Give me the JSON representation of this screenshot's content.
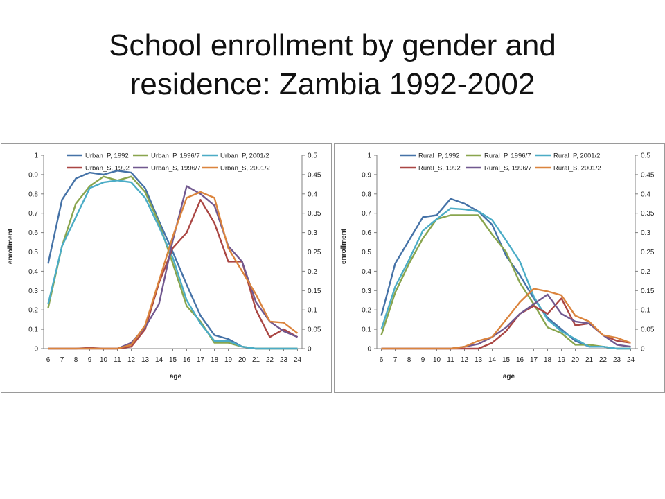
{
  "slide": {
    "title_line1": "School enrollment by gender and",
    "title_line2": "residence: Zambia 1992-2002"
  },
  "colors": {
    "1992_P": "#4572a7",
    "1996_P": "#89a54e",
    "2001_P": "#4bacc6",
    "1992_S": "#aa4643",
    "1996_S": "#71588f",
    "2001_S": "#db843d"
  },
  "chart_data": [
    {
      "type": "line",
      "xlabel": "age",
      "ylabel": "enrollment",
      "x": [
        6,
        7,
        8,
        9,
        10,
        11,
        12,
        13,
        14,
        15,
        16,
        17,
        18,
        19,
        20,
        21,
        22,
        23,
        24
      ],
      "ylim": [
        0,
        1
      ],
      "y2lim": [
        0,
        0.5
      ],
      "yticks": [
        "0",
        "0.1",
        "0.2",
        "0.3",
        "0.4",
        "0.5",
        "0.6",
        "0.7",
        "0.8",
        "0.9",
        "1"
      ],
      "y2ticks": [
        "0",
        "0.05",
        "0.1",
        "0.15",
        "0.2",
        "0.25",
        "0.3",
        "0.35",
        "0.4",
        "0.45",
        "0.5"
      ],
      "legend_position": "top",
      "series": [
        {
          "name": "Urban_P, 1992",
          "axis": "left",
          "color": "#4572a7",
          "values": [
            0.44,
            0.77,
            0.88,
            0.91,
            0.9,
            0.92,
            0.91,
            0.83,
            0.66,
            0.5,
            0.33,
            0.17,
            0.07,
            0.05,
            0.01,
            0.0,
            0.0,
            0.0,
            0.0
          ]
        },
        {
          "name": "Urban_P, 1996/7",
          "axis": "left",
          "color": "#89a54e",
          "values": [
            0.21,
            0.53,
            0.75,
            0.84,
            0.89,
            0.87,
            0.89,
            0.81,
            0.65,
            0.44,
            0.22,
            0.14,
            0.03,
            0.03,
            0.01,
            0.0,
            0.0,
            0.0,
            0.0
          ]
        },
        {
          "name": "Urban_P, 2001/2",
          "axis": "left",
          "color": "#4bacc6",
          "values": [
            0.23,
            0.53,
            0.68,
            0.83,
            0.86,
            0.87,
            0.86,
            0.78,
            0.63,
            0.47,
            0.25,
            0.13,
            0.04,
            0.04,
            0.01,
            0.0,
            0.0,
            0.0,
            0.0
          ]
        },
        {
          "name": "Urban_S, 1992",
          "axis": "right",
          "color": "#aa4643",
          "values": [
            0.0,
            0.0,
            0.0,
            0.002,
            0.0,
            0.0,
            0.005,
            0.05,
            0.17,
            0.26,
            0.3,
            0.385,
            0.325,
            0.225,
            0.225,
            0.1,
            0.03,
            0.05,
            0.03
          ]
        },
        {
          "name": "Urban_S, 1996/7",
          "axis": "right",
          "color": "#71588f",
          "values": [
            0.0,
            0.0,
            0.0,
            0.0,
            0.0,
            0.0,
            0.015,
            0.055,
            0.115,
            0.28,
            0.42,
            0.4,
            0.37,
            0.265,
            0.225,
            0.12,
            0.07,
            0.045,
            0.03
          ]
        },
        {
          "name": "Urban_S, 2001/2",
          "axis": "right",
          "color": "#db843d",
          "values": [
            0.0,
            0.0,
            0.0,
            0.0,
            0.0,
            0.0,
            0.01,
            0.06,
            0.175,
            0.29,
            0.39,
            0.405,
            0.39,
            0.26,
            0.2,
            0.14,
            0.07,
            0.067,
            0.04
          ]
        }
      ]
    },
    {
      "type": "line",
      "xlabel": "age",
      "ylabel": "enrollment",
      "x": [
        6,
        7,
        8,
        9,
        10,
        11,
        12,
        13,
        14,
        15,
        16,
        17,
        18,
        19,
        20,
        21,
        22,
        23,
        24
      ],
      "ylim": [
        0,
        1
      ],
      "y2lim": [
        0,
        0.5
      ],
      "yticks": [
        "0",
        "0.1",
        "0.2",
        "0.3",
        "0.4",
        "0.5",
        "0.6",
        "0.7",
        "0.8",
        "0.9",
        "1"
      ],
      "y2ticks": [
        "0",
        "0.05",
        "0.1",
        "0.15",
        "0.2",
        "0.25",
        "0.3",
        "0.35",
        "0.4",
        "0.45",
        "0.5"
      ],
      "legend_position": "top",
      "series": [
        {
          "name": "Rural_P, 1992",
          "axis": "left",
          "color": "#4572a7",
          "values": [
            0.17,
            0.44,
            0.56,
            0.68,
            0.69,
            0.775,
            0.75,
            0.71,
            0.64,
            0.48,
            0.38,
            0.26,
            0.16,
            0.1,
            0.04,
            0.01,
            0.01,
            0.0,
            0.0
          ]
        },
        {
          "name": "Rural_P, 1996/7",
          "axis": "left",
          "color": "#89a54e",
          "values": [
            0.07,
            0.29,
            0.44,
            0.57,
            0.67,
            0.69,
            0.69,
            0.69,
            0.59,
            0.5,
            0.34,
            0.23,
            0.11,
            0.08,
            0.02,
            0.02,
            0.01,
            0.0,
            0.0
          ]
        },
        {
          "name": "Rural_P, 2001/2",
          "axis": "left",
          "color": "#4bacc6",
          "values": [
            0.1,
            0.32,
            0.46,
            0.61,
            0.67,
            0.725,
            0.72,
            0.71,
            0.665,
            0.56,
            0.45,
            0.27,
            0.15,
            0.09,
            0.05,
            0.01,
            0.01,
            0.0,
            0.0
          ]
        },
        {
          "name": "Rural_S, 1992",
          "axis": "right",
          "color": "#aa4643",
          "values": [
            0.0,
            0.0,
            0.0,
            0.0,
            0.0,
            0.0,
            0.0,
            0.0,
            0.015,
            0.045,
            0.09,
            0.11,
            0.09,
            0.13,
            0.06,
            0.065,
            0.035,
            0.02,
            0.015
          ]
        },
        {
          "name": "Rural_S, 1996/7",
          "axis": "right",
          "color": "#71588f",
          "values": [
            0.0,
            0.0,
            0.0,
            0.0,
            0.0,
            0.0,
            0.005,
            0.012,
            0.03,
            0.055,
            0.09,
            0.115,
            0.14,
            0.09,
            0.07,
            0.065,
            0.035,
            0.01,
            0.005
          ]
        },
        {
          "name": "Rural_S, 2001/2",
          "axis": "right",
          "color": "#db843d",
          "values": [
            0.0,
            0.0,
            0.0,
            0.0,
            0.0,
            0.0,
            0.005,
            0.02,
            0.03,
            0.075,
            0.12,
            0.155,
            0.148,
            0.138,
            0.085,
            0.07,
            0.035,
            0.028,
            0.015
          ]
        }
      ]
    }
  ]
}
